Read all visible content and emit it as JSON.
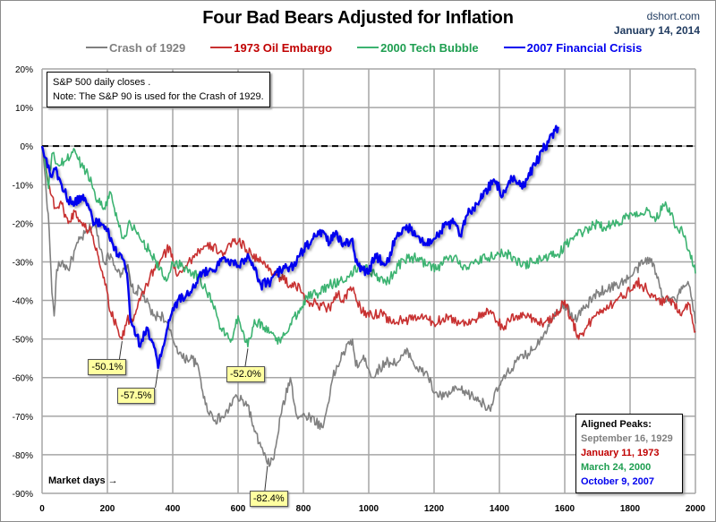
{
  "header": {
    "title": "Four Bad Bears Adjusted for Inflation",
    "source": "dshort.com",
    "date": "January 14, 2014"
  },
  "note": {
    "line1": "S&P 500 daily closes .",
    "line2": "Note: The S&P 90 is used for the Crash of 1929."
  },
  "peaks_box": {
    "heading": "Aligned Peaks:",
    "items": [
      {
        "label": "September 16, 1929",
        "color": "#808080"
      },
      {
        "label": "January 11, 1973",
        "color": "#c00000"
      },
      {
        "label": "March 24, 2000",
        "color": "#1e9e50"
      },
      {
        "label": "October 9, 2007",
        "color": "#0000ee"
      }
    ]
  },
  "chart_data": {
    "type": "line",
    "title": "Four Bad Bears Adjusted for Inflation",
    "xlabel": "Market days →",
    "ylabel": "",
    "xlim": [
      0,
      2000
    ],
    "ylim": [
      -90,
      20
    ],
    "x_ticks": [
      "0",
      "200",
      "400",
      "600",
      "800",
      "1000",
      "1200",
      "1400",
      "1600",
      "1800",
      "2000"
    ],
    "y_ticks": [
      "20%",
      "10%",
      "0%",
      "-10%",
      "-20%",
      "-30%",
      "-40%",
      "-50%",
      "-60%",
      "-70%",
      "-80%",
      "-90%"
    ],
    "grid": true,
    "reference_line": {
      "y": 0,
      "style": "dashed",
      "color": "#000000"
    },
    "legend_position": "top",
    "series": [
      {
        "name": "Crash of 1929",
        "color": "#808080",
        "points": [
          [
            0,
            0
          ],
          [
            10,
            -8
          ],
          [
            22,
            -22
          ],
          [
            30,
            -38
          ],
          [
            37,
            -44
          ],
          [
            45,
            -32
          ],
          [
            60,
            -30
          ],
          [
            80,
            -32
          ],
          [
            110,
            -25
          ],
          [
            140,
            -22
          ],
          [
            160,
            -20
          ],
          [
            190,
            -30
          ],
          [
            210,
            -28
          ],
          [
            240,
            -34
          ],
          [
            260,
            -31
          ],
          [
            280,
            -38
          ],
          [
            300,
            -37
          ],
          [
            340,
            -44
          ],
          [
            370,
            -44
          ],
          [
            400,
            -50
          ],
          [
            430,
            -55
          ],
          [
            460,
            -55
          ],
          [
            480,
            -58
          ],
          [
            500,
            -67
          ],
          [
            530,
            -71
          ],
          [
            560,
            -70
          ],
          [
            590,
            -65
          ],
          [
            630,
            -67
          ],
          [
            650,
            -74
          ],
          [
            670,
            -78
          ],
          [
            690,
            -82.4
          ],
          [
            710,
            -81
          ],
          [
            730,
            -70
          ],
          [
            760,
            -60
          ],
          [
            780,
            -70
          ],
          [
            820,
            -70
          ],
          [
            860,
            -73
          ],
          [
            890,
            -60
          ],
          [
            920,
            -54
          ],
          [
            950,
            -50
          ],
          [
            960,
            -57
          ],
          [
            990,
            -55
          ],
          [
            1010,
            -60
          ],
          [
            1050,
            -56
          ],
          [
            1090,
            -56
          ],
          [
            1120,
            -53
          ],
          [
            1150,
            -58
          ],
          [
            1180,
            -59
          ],
          [
            1200,
            -64
          ],
          [
            1230,
            -65
          ],
          [
            1270,
            -63
          ],
          [
            1300,
            -64
          ],
          [
            1340,
            -66
          ],
          [
            1370,
            -68
          ],
          [
            1400,
            -62
          ],
          [
            1450,
            -56
          ],
          [
            1500,
            -53
          ],
          [
            1540,
            -48
          ],
          [
            1570,
            -43
          ],
          [
            1600,
            -41
          ],
          [
            1630,
            -45
          ],
          [
            1660,
            -42
          ],
          [
            1700,
            -38
          ],
          [
            1760,
            -36
          ],
          [
            1800,
            -34
          ],
          [
            1830,
            -31
          ],
          [
            1860,
            -29
          ],
          [
            1880,
            -33
          ],
          [
            1900,
            -39
          ],
          [
            1940,
            -40
          ],
          [
            1960,
            -37
          ],
          [
            1980,
            -36
          ],
          [
            1990,
            -40
          ],
          [
            2000,
            -46
          ]
        ]
      },
      {
        "name": "1973 Oil Embargo",
        "color": "#c83232",
        "points": [
          [
            0,
            0
          ],
          [
            10,
            -3
          ],
          [
            20,
            -10
          ],
          [
            40,
            -16
          ],
          [
            60,
            -15
          ],
          [
            80,
            -20
          ],
          [
            100,
            -17
          ],
          [
            130,
            -21
          ],
          [
            150,
            -22
          ],
          [
            170,
            -28
          ],
          [
            190,
            -34
          ],
          [
            210,
            -43
          ],
          [
            230,
            -47
          ],
          [
            245,
            -50.1
          ],
          [
            260,
            -45
          ],
          [
            280,
            -45
          ],
          [
            300,
            -40
          ],
          [
            330,
            -34
          ],
          [
            360,
            -30
          ],
          [
            390,
            -26
          ],
          [
            410,
            -33
          ],
          [
            440,
            -31
          ],
          [
            460,
            -29
          ],
          [
            480,
            -27
          ],
          [
            520,
            -26
          ],
          [
            560,
            -28
          ],
          [
            590,
            -24
          ],
          [
            620,
            -26
          ],
          [
            640,
            -28
          ],
          [
            670,
            -30
          ],
          [
            700,
            -32
          ],
          [
            730,
            -34
          ],
          [
            760,
            -36
          ],
          [
            790,
            -37
          ],
          [
            810,
            -40
          ],
          [
            840,
            -41
          ],
          [
            880,
            -42
          ],
          [
            900,
            -38
          ],
          [
            920,
            -40
          ],
          [
            950,
            -37
          ],
          [
            980,
            -43
          ],
          [
            1010,
            -44
          ],
          [
            1040,
            -43
          ],
          [
            1070,
            -46
          ],
          [
            1100,
            -45
          ],
          [
            1130,
            -45
          ],
          [
            1160,
            -44
          ],
          [
            1200,
            -46
          ],
          [
            1240,
            -44
          ],
          [
            1280,
            -46
          ],
          [
            1320,
            -45
          ],
          [
            1370,
            -43
          ],
          [
            1410,
            -47
          ],
          [
            1450,
            -44
          ],
          [
            1490,
            -44
          ],
          [
            1530,
            -46
          ],
          [
            1570,
            -44
          ],
          [
            1600,
            -40
          ],
          [
            1620,
            -45
          ],
          [
            1640,
            -49
          ],
          [
            1660,
            -48
          ],
          [
            1690,
            -44
          ],
          [
            1720,
            -42
          ],
          [
            1760,
            -40
          ],
          [
            1790,
            -38
          ],
          [
            1820,
            -35
          ],
          [
            1850,
            -37
          ],
          [
            1880,
            -40
          ],
          [
            1920,
            -40
          ],
          [
            1960,
            -43
          ],
          [
            1980,
            -41
          ],
          [
            2000,
            -48
          ]
        ]
      },
      {
        "name": "2000 Tech Bubble",
        "color": "#3cb371",
        "points": [
          [
            0,
            0
          ],
          [
            10,
            -5
          ],
          [
            20,
            -11
          ],
          [
            30,
            -2
          ],
          [
            50,
            -5
          ],
          [
            70,
            -4
          ],
          [
            100,
            -1
          ],
          [
            120,
            -5
          ],
          [
            140,
            -7
          ],
          [
            170,
            -14
          ],
          [
            190,
            -16
          ],
          [
            210,
            -12
          ],
          [
            230,
            -19
          ],
          [
            250,
            -24
          ],
          [
            270,
            -20
          ],
          [
            300,
            -24
          ],
          [
            330,
            -27
          ],
          [
            360,
            -32
          ],
          [
            380,
            -35
          ],
          [
            400,
            -30
          ],
          [
            430,
            -31
          ],
          [
            450,
            -32
          ],
          [
            480,
            -34
          ],
          [
            520,
            -40
          ],
          [
            550,
            -48
          ],
          [
            580,
            -50
          ],
          [
            600,
            -44
          ],
          [
            630,
            -52
          ],
          [
            650,
            -45
          ],
          [
            680,
            -47
          ],
          [
            710,
            -49
          ],
          [
            730,
            -51
          ],
          [
            760,
            -46
          ],
          [
            790,
            -42
          ],
          [
            810,
            -39
          ],
          [
            850,
            -38
          ],
          [
            880,
            -36
          ],
          [
            910,
            -35
          ],
          [
            940,
            -34
          ],
          [
            970,
            -31
          ],
          [
            1000,
            -32
          ],
          [
            1030,
            -34
          ],
          [
            1060,
            -35
          ],
          [
            1090,
            -31
          ],
          [
            1120,
            -29
          ],
          [
            1150,
            -29
          ],
          [
            1180,
            -31
          ],
          [
            1210,
            -32
          ],
          [
            1240,
            -29
          ],
          [
            1270,
            -29
          ],
          [
            1300,
            -32
          ],
          [
            1330,
            -30
          ],
          [
            1360,
            -29
          ],
          [
            1400,
            -28
          ],
          [
            1430,
            -28
          ],
          [
            1470,
            -31
          ],
          [
            1500,
            -30
          ],
          [
            1540,
            -29
          ],
          [
            1580,
            -28
          ],
          [
            1620,
            -24
          ],
          [
            1660,
            -22
          ],
          [
            1700,
            -20
          ],
          [
            1720,
            -21
          ],
          [
            1760,
            -20
          ],
          [
            1790,
            -18
          ],
          [
            1820,
            -17
          ],
          [
            1860,
            -17
          ],
          [
            1880,
            -19
          ],
          [
            1900,
            -15
          ],
          [
            1920,
            -16
          ],
          [
            1940,
            -21
          ],
          [
            1960,
            -22
          ],
          [
            1980,
            -27
          ],
          [
            2000,
            -33
          ]
        ]
      },
      {
        "name": "2007 Financial Crisis",
        "color": "#0000ee",
        "points": [
          [
            0,
            0
          ],
          [
            10,
            -3
          ],
          [
            20,
            -5
          ],
          [
            30,
            -8
          ],
          [
            40,
            -6
          ],
          [
            60,
            -10
          ],
          [
            80,
            -14
          ],
          [
            100,
            -15
          ],
          [
            120,
            -13
          ],
          [
            140,
            -15
          ],
          [
            160,
            -20
          ],
          [
            180,
            -20
          ],
          [
            200,
            -22
          ],
          [
            220,
            -27
          ],
          [
            240,
            -28
          ],
          [
            260,
            -33
          ],
          [
            270,
            -45
          ],
          [
            290,
            -49
          ],
          [
            300,
            -52
          ],
          [
            320,
            -47
          ],
          [
            340,
            -51
          ],
          [
            355,
            -57.5
          ],
          [
            370,
            -52
          ],
          [
            400,
            -42
          ],
          [
            430,
            -39
          ],
          [
            460,
            -37
          ],
          [
            490,
            -33
          ],
          [
            520,
            -32
          ],
          [
            560,
            -29
          ],
          [
            600,
            -31
          ],
          [
            630,
            -28
          ],
          [
            650,
            -32
          ],
          [
            670,
            -36
          ],
          [
            700,
            -35
          ],
          [
            730,
            -32
          ],
          [
            770,
            -31
          ],
          [
            800,
            -27
          ],
          [
            830,
            -24
          ],
          [
            860,
            -22
          ],
          [
            880,
            -25
          ],
          [
            900,
            -22
          ],
          [
            920,
            -26
          ],
          [
            950,
            -24
          ],
          [
            960,
            -30
          ],
          [
            980,
            -32
          ],
          [
            1000,
            -33
          ],
          [
            1020,
            -28
          ],
          [
            1040,
            -30
          ],
          [
            1060,
            -30
          ],
          [
            1080,
            -24
          ],
          [
            1110,
            -21
          ],
          [
            1140,
            -22
          ],
          [
            1170,
            -25
          ],
          [
            1200,
            -24
          ],
          [
            1230,
            -21
          ],
          [
            1260,
            -20
          ],
          [
            1280,
            -23
          ],
          [
            1300,
            -18
          ],
          [
            1330,
            -15
          ],
          [
            1350,
            -13
          ],
          [
            1380,
            -9
          ],
          [
            1400,
            -11
          ],
          [
            1410,
            -13
          ],
          [
            1430,
            -9
          ],
          [
            1450,
            -9
          ],
          [
            1470,
            -11
          ],
          [
            1490,
            -7
          ],
          [
            1510,
            -5
          ],
          [
            1530,
            -1
          ],
          [
            1550,
            1
          ],
          [
            1570,
            4
          ],
          [
            1580,
            5
          ]
        ]
      }
    ],
    "annotations": [
      {
        "text": "-50.1%",
        "series": "1973 Oil Embargo",
        "x": 245,
        "y": -50.1
      },
      {
        "text": "-57.5%",
        "series": "2007 Financial Crisis",
        "x": 355,
        "y": -57.5
      },
      {
        "text": "-52.0%",
        "series": "2000 Tech Bubble",
        "x": 630,
        "y": -52.0
      },
      {
        "text": "-82.4%",
        "series": "Crash of 1929",
        "x": 690,
        "y": -82.4
      }
    ]
  }
}
